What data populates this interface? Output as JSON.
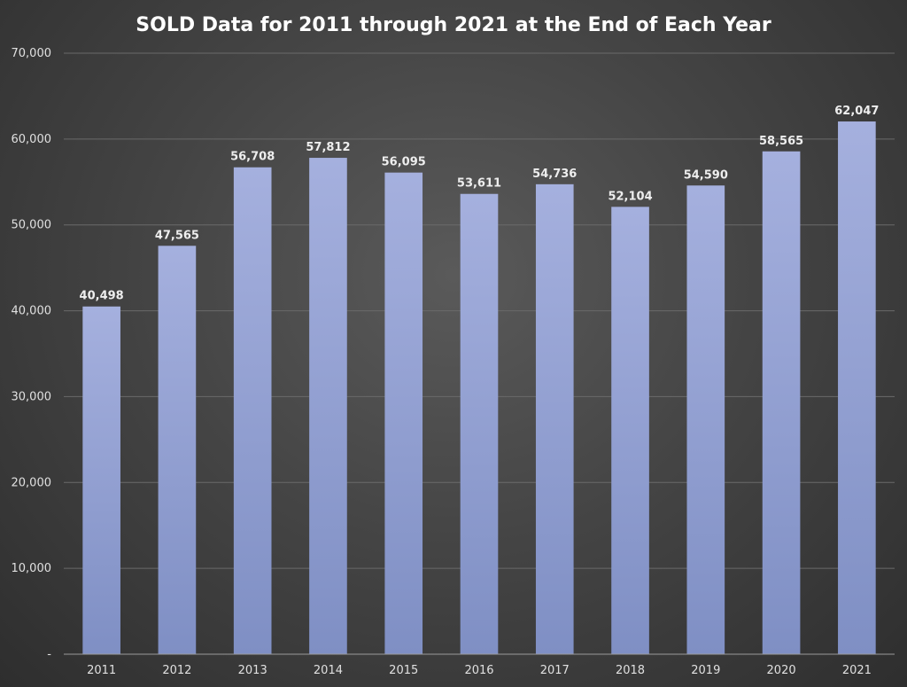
{
  "chart_data": {
    "type": "bar",
    "title": "SOLD Data for 2011 through 2021 at the End of Each Year",
    "xlabel": "",
    "ylabel": "",
    "categories": [
      "2011",
      "2012",
      "2013",
      "2014",
      "2015",
      "2016",
      "2017",
      "2018",
      "2019",
      "2020",
      "2021"
    ],
    "values": [
      40498,
      47565,
      56708,
      57812,
      56095,
      53611,
      54736,
      52104,
      54590,
      58565,
      62047
    ],
    "data_labels": [
      "40,498",
      "47,565",
      "56,708",
      "57,812",
      "56,095",
      "53,611",
      "54,736",
      "52,104",
      "54,590",
      "58,565",
      "62,047"
    ],
    "ylim": [
      0,
      70000
    ],
    "yticks": [
      0,
      10000,
      20000,
      30000,
      40000,
      50000,
      60000,
      70000
    ],
    "ytick_labels": [
      "-",
      "10,000",
      "20,000",
      "30,000",
      "40,000",
      "50,000",
      "60,000",
      "70,000"
    ],
    "grid": true,
    "legend": "none",
    "colors": {
      "bar_top": "#a5b0de",
      "bar_bottom": "#7f8fc4",
      "gridline": "#6a6a6a",
      "axis_line": "#9a9a9a",
      "text": "#e0e0e0",
      "title": "#ffffff"
    }
  }
}
